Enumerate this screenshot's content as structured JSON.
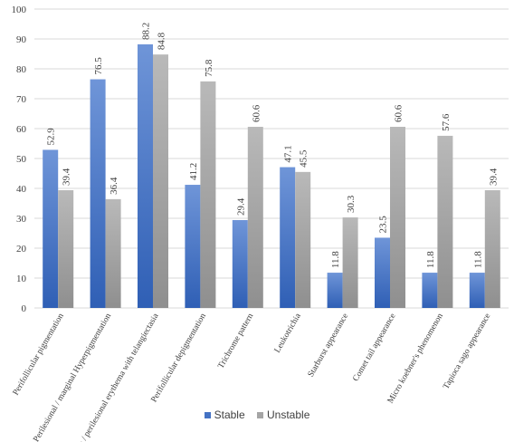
{
  "chart_data": {
    "type": "bar",
    "categories": [
      "Perifollicular pigmentation",
      "Perilesional / marginal Hyperpigmentation",
      "Intra / perilesional erythema with telangiectasia",
      "Perifollicular depigmentation",
      "Trichrome pattern",
      "Leukotrichia",
      "Starburst appearance",
      "Comet tail appearance",
      "Micro koebner's phenomenon",
      "Tapioca sago appearance"
    ],
    "series": [
      {
        "name": "Stable",
        "values": [
          52.9,
          76.5,
          88.2,
          41.2,
          29.4,
          47.1,
          11.8,
          23.5,
          11.8,
          11.8
        ],
        "color": "#4472C4"
      },
      {
        "name": "Unstable",
        "values": [
          39.4,
          36.4,
          84.8,
          75.8,
          60.6,
          45.5,
          30.3,
          60.6,
          57.6,
          39.4
        ],
        "color": "#A5A5A5"
      }
    ],
    "value_labels": {
      "Stable": [
        "52.9",
        "76.5",
        "88.2",
        "41.2",
        "29.4",
        "47.1",
        "11.8",
        "23.5",
        "11.8",
        "11.8"
      ],
      "Unstable": [
        "39.4",
        "36.4",
        "84.8",
        "75.8",
        "60.6",
        "45.5",
        "30.3",
        "60.6",
        "57.6",
        "39.4"
      ]
    },
    "ylim": [
      0,
      100
    ],
    "yticks": [
      0,
      10,
      20,
      30,
      40,
      50,
      60,
      70,
      80,
      90,
      100
    ],
    "title": "",
    "xlabel": "",
    "ylabel": "",
    "grid": true,
    "legend_position": "bottom"
  }
}
